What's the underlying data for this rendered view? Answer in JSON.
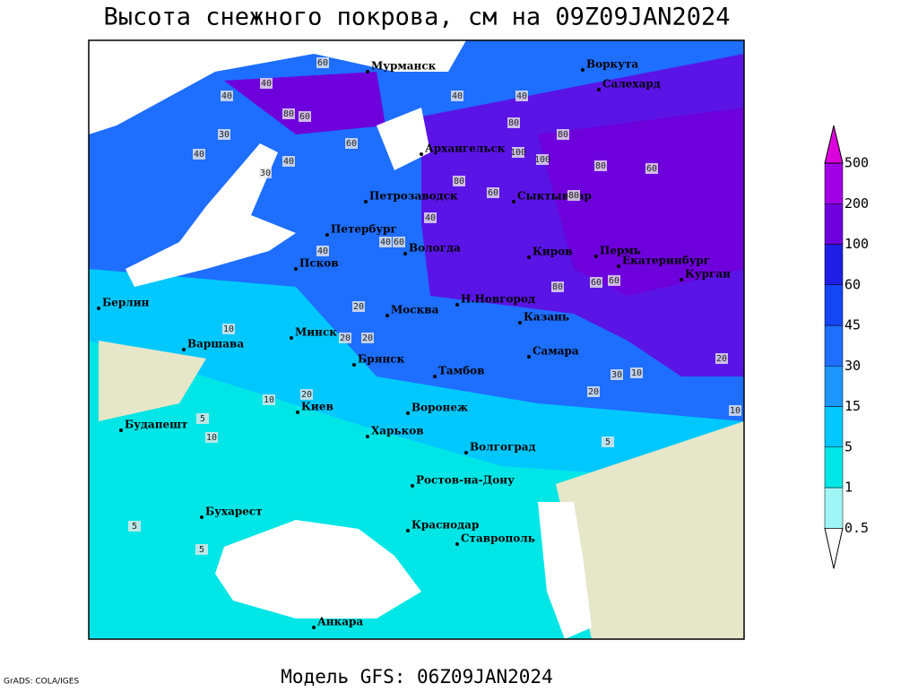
{
  "title": "Высота снежного покрова, см на 09Z09JAN2024",
  "subtitle": "Модель GFS: 06Z09JAN2024",
  "credit": "GrADS: COLA/IGES",
  "colorbar": {
    "levels": [
      0.5,
      1,
      5,
      15,
      30,
      45,
      60,
      100,
      200,
      500
    ],
    "colors": [
      "#ffffff",
      "#9ff5f5",
      "#00e6e6",
      "#00c8ff",
      "#1e96ff",
      "#1e6eff",
      "#1446f5",
      "#1e1ee6",
      "#6e00dc",
      "#a000e6",
      "#dc00dc"
    ]
  },
  "cities": [
    "Мурманск",
    "Воркута",
    "Салехард",
    "Архангельск",
    "Петрозаводск",
    "Сыктывкар",
    "Петербург",
    "Вологда",
    "Киров",
    "Пермь",
    "Екатеринбург",
    "Курган",
    "Псков",
    "Н.Новгород",
    "Москва",
    "Казань",
    "Берлин",
    "Минск",
    "Варшава",
    "Брянск",
    "Самара",
    "Тамбов",
    "Киев",
    "Воронеж",
    "Будапешт",
    "Харьков",
    "Волгоград",
    "Ростов-на-Дону",
    "Бухарест",
    "Краснодар",
    "Ставрополь",
    "Анкара"
  ],
  "contour_labels": [
    60,
    40,
    40,
    80,
    60,
    40,
    80,
    40,
    30,
    40,
    60,
    40,
    30,
    80,
    60,
    100,
    100,
    80,
    80,
    60,
    40,
    60,
    80,
    60,
    60,
    80,
    40,
    20,
    40,
    20,
    20,
    10,
    10,
    10,
    10,
    5,
    5,
    5,
    5,
    20,
    30,
    20,
    20,
    10
  ]
}
